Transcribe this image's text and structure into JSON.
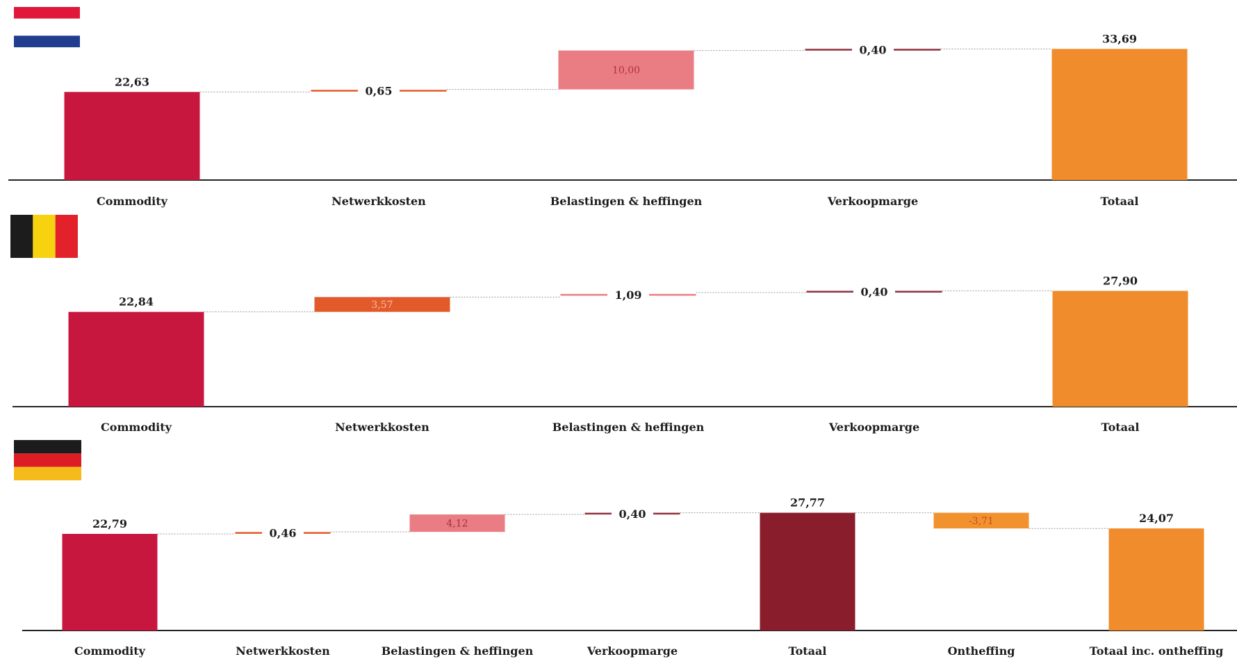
{
  "colors": {
    "commodity": "#c8173f",
    "network": "#e35a2a",
    "taxes": "#ea7d83",
    "margin": "#8f2f3c",
    "total": "#f08c2b",
    "subtotal": "#8a1d2b",
    "exemption": "#f2922f",
    "connector": "#9a9a9a",
    "axis": "#222222"
  },
  "flags": [
    {
      "name": "netherlands-flag",
      "stripes": [
        "#e0173b",
        "#ffffff",
        "#213d8f"
      ],
      "orientation": "horizontal"
    },
    {
      "name": "belgium-flag",
      "stripes": [
        "#1c1c1c",
        "#f6d20f",
        "#e3212b"
      ],
      "orientation": "vertical"
    },
    {
      "name": "germany-flag",
      "stripes": [
        "#1c1c1c",
        "#dd1d24",
        "#f6bb1a"
      ],
      "orientation": "horizontal"
    }
  ],
  "chart_data": [
    {
      "type": "bar",
      "subtype": "waterfall",
      "country_flag": "netherlands-flag",
      "categories": [
        "Commodity",
        "Netwerkkosten",
        "Belastingen & heffingen",
        "Verkoopmarge",
        "Totaal"
      ],
      "values": [
        22.63,
        0.65,
        10.0,
        0.4,
        33.69
      ],
      "labels": [
        "22,63",
        "0,65",
        "10,00",
        "0,40",
        "33,69"
      ],
      "kinds": [
        "total",
        "delta",
        "delta",
        "delta",
        "total"
      ],
      "colors": [
        "commodity",
        "network",
        "taxes",
        "margin",
        "total"
      ]
    },
    {
      "type": "bar",
      "subtype": "waterfall",
      "country_flag": "belgium-flag",
      "categories": [
        "Commodity",
        "Netwerkkosten",
        "Belastingen & heffingen",
        "Verkoopmarge",
        "Totaal"
      ],
      "values": [
        22.84,
        3.57,
        1.09,
        0.4,
        27.9
      ],
      "labels": [
        "22,84",
        "3,57",
        "1,09",
        "0,40",
        "27,90"
      ],
      "kinds": [
        "total",
        "delta",
        "delta",
        "delta",
        "total"
      ],
      "colors": [
        "commodity",
        "network",
        "taxes",
        "margin",
        "total"
      ]
    },
    {
      "type": "bar",
      "subtype": "waterfall",
      "country_flag": "germany-flag",
      "categories": [
        "Commodity",
        "Netwerkkosten",
        "Belastingen & heffingen",
        "Verkoopmarge",
        "Totaal",
        "Ontheffing",
        "Totaal inc. ontheffing"
      ],
      "values": [
        22.79,
        0.46,
        4.12,
        0.4,
        27.77,
        -3.71,
        24.07
      ],
      "labels": [
        "22,79",
        "0,46",
        "4,12",
        "0,40",
        "27,77",
        "-3,71",
        "24,07"
      ],
      "kinds": [
        "total",
        "delta",
        "delta",
        "delta",
        "total",
        "delta",
        "total"
      ],
      "colors": [
        "commodity",
        "network",
        "taxes",
        "margin",
        "subtotal",
        "exemption",
        "total"
      ]
    }
  ]
}
